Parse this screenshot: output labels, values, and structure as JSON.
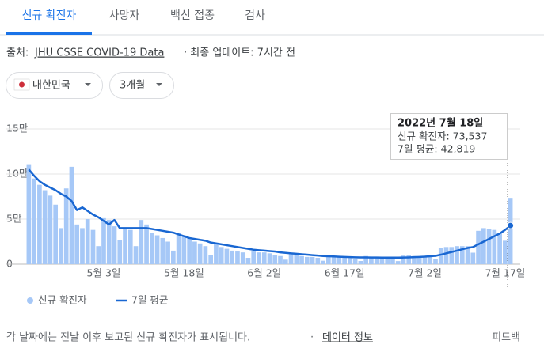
{
  "tabs": [
    "신규 확진자",
    "사망자",
    "백신 접종",
    "검사"
  ],
  "source": {
    "label": "출처:",
    "link": "JHU CSSE COVID-19 Data",
    "updated": "· 최종 업데이트: 7시간 전"
  },
  "filters": [
    "대한민국",
    "3개월"
  ],
  "chart_data": {
    "type": "bar",
    "categories": [
      null,
      null,
      null,
      null,
      null,
      null,
      null,
      null,
      null,
      null,
      null,
      null,
      null,
      null,
      "5월 3일",
      null,
      null,
      null,
      null,
      null,
      null,
      null,
      null,
      null,
      null,
      null,
      null,
      null,
      null,
      "5월 18일",
      null,
      null,
      null,
      null,
      null,
      null,
      null,
      null,
      null,
      null,
      null,
      null,
      null,
      null,
      "6월 2일",
      null,
      null,
      null,
      null,
      null,
      null,
      null,
      null,
      null,
      null,
      null,
      null,
      null,
      null,
      "6월 17일",
      null,
      null,
      null,
      null,
      null,
      null,
      null,
      null,
      null,
      null,
      null,
      null,
      null,
      null,
      "7월 2일",
      null,
      null,
      null,
      null,
      null,
      null,
      null,
      null,
      null,
      null,
      null,
      null,
      null,
      null,
      "7월 17일",
      null
    ],
    "series": [
      {
        "name": "신규 확진자",
        "type": "bar",
        "color": "#a6c8f7",
        "values": [
          110000,
          95000,
          88000,
          82000,
          76000,
          66000,
          40000,
          84000,
          108000,
          44000,
          40000,
          50000,
          38000,
          20000,
          51000,
          49000,
          42000,
          27000,
          40000,
          38000,
          20000,
          49000,
          44000,
          35000,
          32000,
          29000,
          25000,
          15000,
          35000,
          32000,
          29000,
          25000,
          23000,
          20000,
          10000,
          23000,
          19000,
          17000,
          15000,
          14000,
          13000,
          7000,
          14000,
          13000,
          13000,
          12000,
          10000,
          9000,
          5000,
          12000,
          10000,
          9000,
          8000,
          8000,
          7000,
          3800,
          9000,
          8000,
          7500,
          7000,
          6800,
          6000,
          3500,
          9000,
          8000,
          7500,
          7000,
          6500,
          6000,
          3400,
          9500,
          10000,
          9000,
          8000,
          8700,
          10000,
          6000,
          18000,
          19000,
          19000,
          20000,
          20000,
          20000,
          12700,
          37000,
          40000,
          39000,
          38000,
          35000,
          26000,
          73537
        ]
      },
      {
        "name": "7일 평균",
        "type": "line",
        "color": "#1967d2",
        "values": [
          105000,
          98000,
          92000,
          88000,
          85000,
          82000,
          78000,
          75000,
          70000,
          60000,
          63000,
          59000,
          55000,
          52000,
          48000,
          44000,
          49000,
          40000,
          40000,
          40000,
          40000,
          40000,
          40000,
          39000,
          38000,
          37000,
          36000,
          35000,
          33000,
          31000,
          29000,
          28000,
          27000,
          26000,
          24000,
          23000,
          22000,
          21000,
          20000,
          19000,
          18000,
          17000,
          16000,
          15500,
          15000,
          14500,
          14000,
          13000,
          12500,
          12000,
          11500,
          11000,
          10500,
          10000,
          9500,
          9000,
          8800,
          8500,
          8200,
          8000,
          7800,
          7600,
          7500,
          7400,
          7300,
          7300,
          7200,
          7200,
          7200,
          7200,
          7300,
          7500,
          7800,
          8000,
          8300,
          8800,
          9200,
          10500,
          12000,
          13500,
          15000,
          16500,
          18000,
          19000,
          22000,
          25000,
          28000,
          31000,
          34000,
          38000,
          42819
        ]
      }
    ],
    "ylim": [
      0,
      150000
    ],
    "yticks": [
      {
        "value": 0,
        "label": "0"
      },
      {
        "value": 50000,
        "label": "5만"
      },
      {
        "value": 100000,
        "label": "10만"
      },
      {
        "value": 150000,
        "label": "15만"
      }
    ],
    "grid": true,
    "tooltip": {
      "date": "2022년 7월 18일",
      "lines": [
        "신규 확진자: 73,537",
        "7일 평균: 42,819"
      ]
    }
  },
  "footer": {
    "note": "각 날짜에는 전날 이후 보고된 신규 확진자가 표시됩니다.",
    "separator": "·",
    "link": "데이터 정보",
    "feedback": "피드백"
  }
}
